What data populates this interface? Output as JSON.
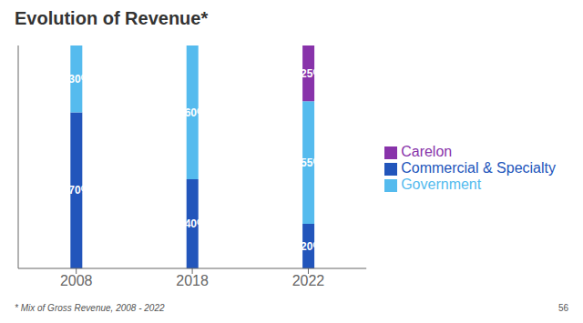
{
  "chart_data": {
    "type": "bar",
    "title": "Evolution of Revenue*",
    "categories": [
      "2008",
      "2018",
      "2022"
    ],
    "series": [
      {
        "name": "Commercial & Specialty",
        "color": "#2255bb",
        "values": [
          70,
          40,
          20
        ],
        "value_labels": [
          "~70%",
          "~40%",
          "~20%"
        ]
      },
      {
        "name": "Government",
        "color": "#55bbee",
        "values": [
          30,
          60,
          55
        ],
        "value_labels": [
          "~30%",
          "~60%",
          "~55%"
        ]
      },
      {
        "name": "Carelon",
        "color": "#8833aa",
        "values": [
          0,
          0,
          25
        ],
        "value_labels": [
          null,
          null,
          "~25%"
        ]
      }
    ],
    "stacked": true,
    "data_labels": true,
    "ylim": [
      0,
      100
    ],
    "tick_labels": "x",
    "grid": false,
    "legend": "right",
    "annotations": [
      "* Mix of Gross Revenue, 2008 - 2022",
      "56"
    ]
  }
}
